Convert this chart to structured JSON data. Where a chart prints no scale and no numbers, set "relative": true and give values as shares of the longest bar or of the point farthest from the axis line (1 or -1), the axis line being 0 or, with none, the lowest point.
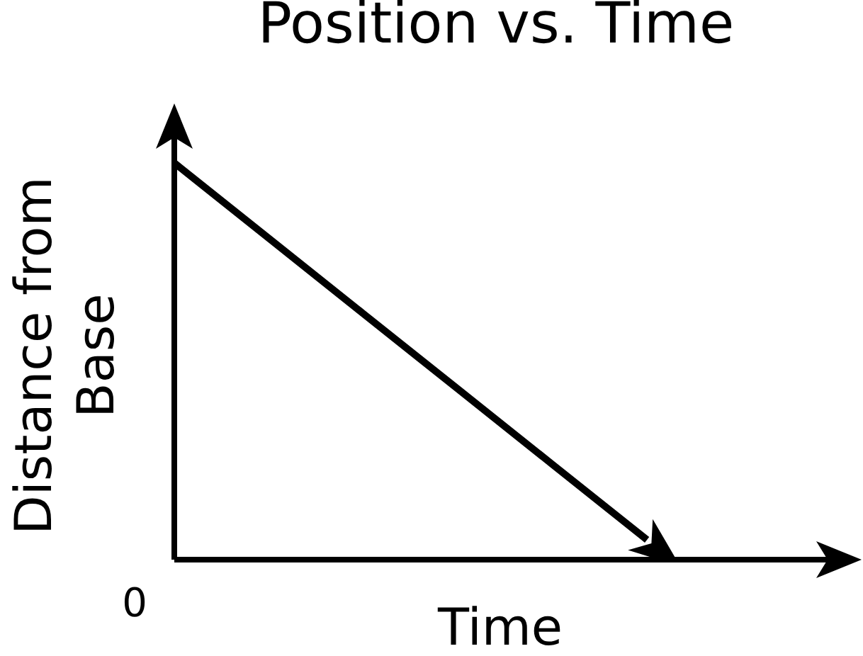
{
  "chart_data": {
    "type": "line",
    "title": "Position vs. Time",
    "xlabel": "Time",
    "ylabel": "Distance from Base",
    "categories": [
      null,
      null,
      null,
      null,
      null,
      null,
      null,
      null
    ],
    "series": [
      {
        "color": "#000000",
        "values": [
          1,
          0.81,
          0.62,
          0.43,
          0.24,
          0.05,
          null,
          null
        ]
      }
    ],
    "relative": true,
    "grid": false,
    "legend": false,
    "annotations": [
      "0"
    ]
  }
}
